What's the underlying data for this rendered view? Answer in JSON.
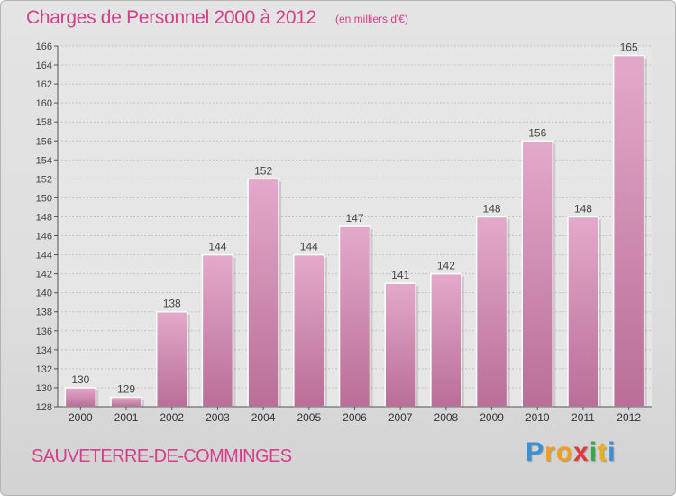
{
  "header": {
    "title": "Charges de Personnel 2000 à 2012",
    "subtitle": "(en milliers d'€)"
  },
  "footer": {
    "commune": "SAUVETERRE-DE-COMMINGES",
    "logo": [
      "P",
      "r",
      "o",
      "x",
      "i",
      "t",
      "i"
    ]
  },
  "colors": {
    "title": "#d63d8a",
    "bar_light": "#e3a9ca",
    "bar_dark": "#b96e98",
    "logo": [
      "#3a8fd6",
      "#f0a020",
      "#f0a020",
      "#e03a3a",
      "#3aa848",
      "#e8b020",
      "#3a8fd6"
    ]
  },
  "chart_data": {
    "type": "bar",
    "categories": [
      "2000",
      "2001",
      "2002",
      "2003",
      "2004",
      "2005",
      "2006",
      "2007",
      "2008",
      "2009",
      "2010",
      "2011",
      "2012"
    ],
    "values": [
      130,
      129,
      138,
      144,
      152,
      144,
      147,
      141,
      142,
      148,
      156,
      148,
      165
    ],
    "yticks": [
      128,
      130,
      132,
      134,
      136,
      138,
      140,
      142,
      144,
      146,
      148,
      150,
      152,
      154,
      156,
      158,
      160,
      162,
      164,
      166
    ],
    "ylim": [
      128,
      166
    ],
    "grid": true,
    "data_labels": true
  }
}
